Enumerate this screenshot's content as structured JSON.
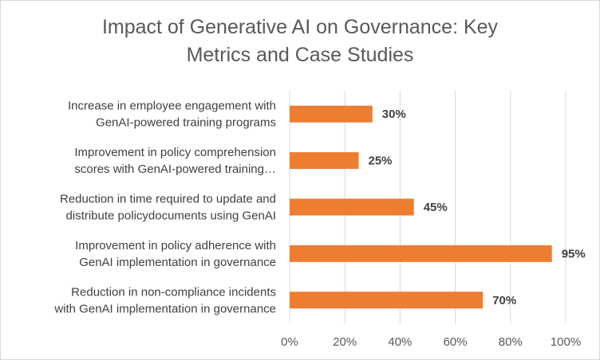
{
  "chart_data": {
    "type": "bar",
    "orientation": "horizontal",
    "title_lines": [
      "Impact of Generative AI on Governance: Key",
      "Metrics and Case Studies"
    ],
    "categories": [
      [
        "Increase in employee engagement with",
        "GenAI-powered training programs"
      ],
      [
        "Improvement in policy comprehension",
        "scores with GenAI-powered training…"
      ],
      [
        "Reduction in time required to update and",
        "distribute policydocuments using GenAI"
      ],
      [
        "Improvement in policy adherence with",
        "GenAI implementation in governance"
      ],
      [
        "Reduction in non-compliance incidents",
        "with GenAI implementation in governance"
      ]
    ],
    "values": [
      30,
      25,
      45,
      95,
      70
    ],
    "data_labels": [
      "30%",
      "25%",
      "45%",
      "95%",
      "70%"
    ],
    "xlim": [
      0,
      100
    ],
    "ticks": [
      0,
      20,
      40,
      60,
      80,
      100
    ],
    "tick_labels": [
      "0%",
      "20%",
      "40%",
      "60%",
      "80%",
      "100%"
    ],
    "grid": true,
    "xlabel": "",
    "ylabel": "",
    "bar_color": "#ED7D31",
    "grid_color": "#D9D9D9"
  }
}
